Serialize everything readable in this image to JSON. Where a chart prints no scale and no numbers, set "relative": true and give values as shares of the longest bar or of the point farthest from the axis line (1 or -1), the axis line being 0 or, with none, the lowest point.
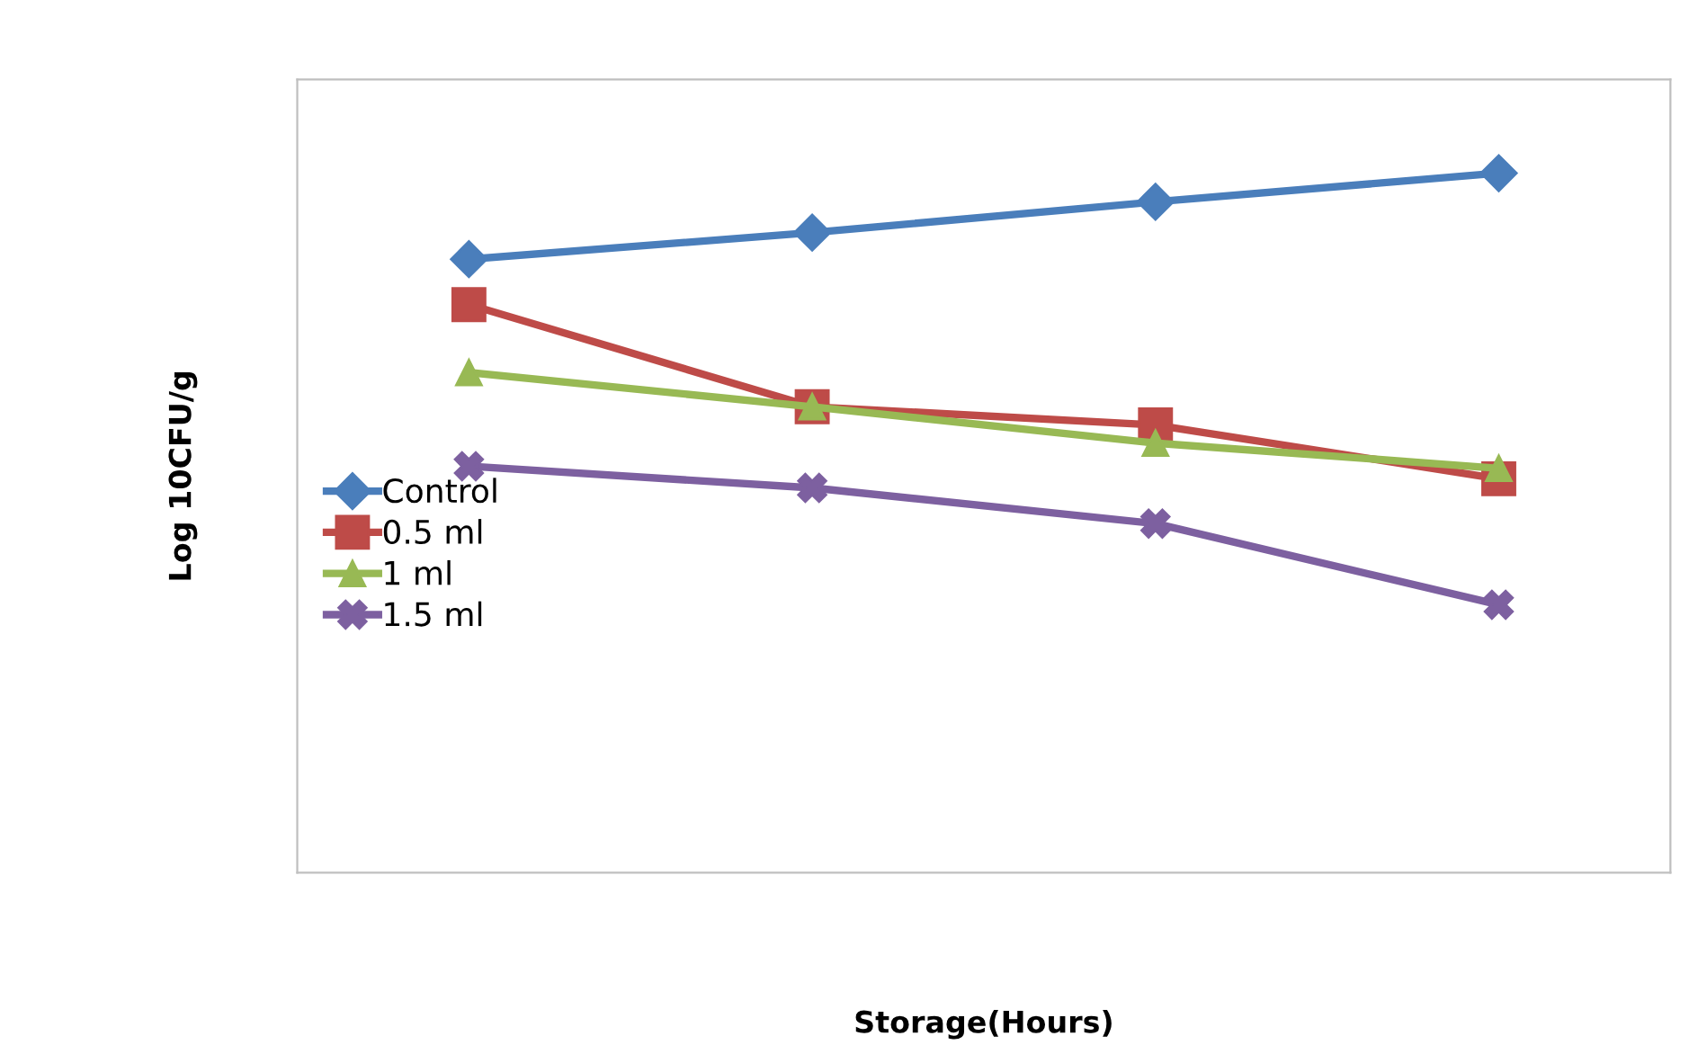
{
  "chart_data": {
    "type": "line",
    "relative": true,
    "xlabel": "Storage(Hours)",
    "ylabel": "Log 10CFU/g",
    "categories": [
      null,
      null,
      null,
      null
    ],
    "series": [
      {
        "name": "Control",
        "color": "#4a7ebb",
        "marker": "diamond",
        "values": [
          0.877,
          0.915,
          0.959,
          1.0
        ]
      },
      {
        "name": "0.5 ml",
        "color": "#be4b48",
        "marker": "square",
        "values": [
          0.812,
          0.666,
          0.64,
          0.563
        ]
      },
      {
        "name": "1 ml",
        "color": "#98b954",
        "marker": "triangle",
        "values": [
          0.715,
          0.666,
          0.614,
          0.578
        ]
      },
      {
        "name": "1.5 ml",
        "color": "#7d60a0",
        "marker": "cross",
        "values": [
          0.581,
          0.55,
          0.499,
          0.383
        ]
      }
    ],
    "legend": "left",
    "grid": false,
    "tick_labels": false,
    "line_style": "solid"
  }
}
